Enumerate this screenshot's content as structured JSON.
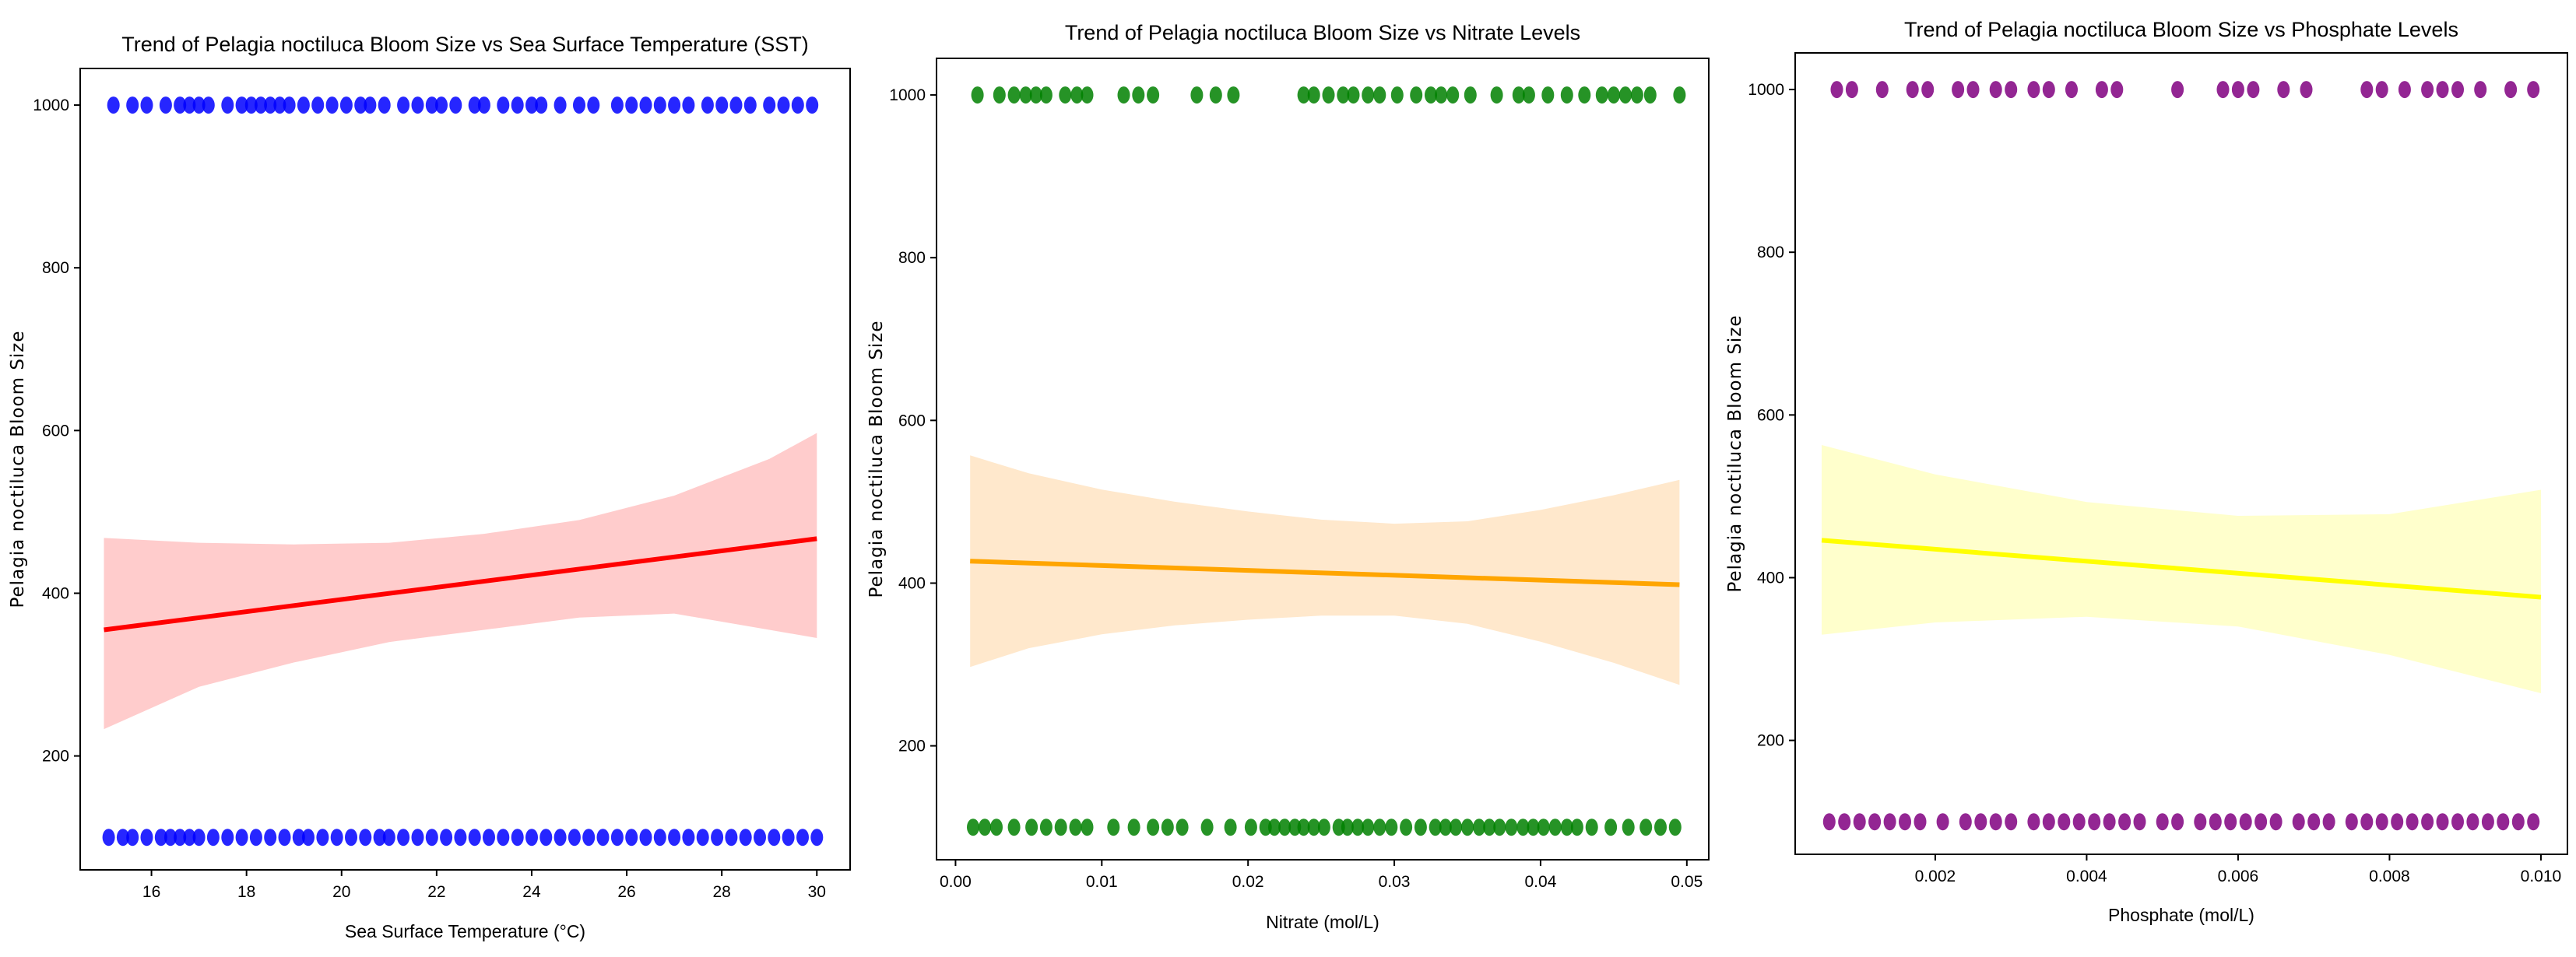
{
  "chart_data": [
    {
      "type": "scatter",
      "title": "Trend of Pelagia noctiluca Bloom Size vs Sea Surface Temperature (SST)",
      "xlabel": "Sea Surface Temperature (°C)",
      "ylabel": "Pelagia noctiluca Bloom Size",
      "xlim": [
        14.5,
        30.7
      ],
      "ylim": [
        60,
        1045
      ],
      "xticks": [
        16,
        18,
        20,
        22,
        24,
        26,
        28,
        30
      ],
      "yticks": [
        200,
        400,
        600,
        800,
        1000
      ],
      "point_color": "#0000ff",
      "line_color": "#ff0000",
      "band_color": "#ffcccc",
      "points_high_x": [
        15.2,
        15.6,
        15.9,
        16.3,
        16.6,
        16.8,
        17.0,
        17.2,
        17.6,
        17.9,
        18.1,
        18.3,
        18.5,
        18.7,
        18.9,
        19.2,
        19.5,
        19.8,
        20.1,
        20.4,
        20.6,
        20.9,
        21.3,
        21.6,
        21.9,
        22.1,
        22.4,
        22.8,
        23.0,
        23.4,
        23.7,
        24.0,
        24.2,
        24.6,
        25.0,
        25.3,
        25.8,
        26.1,
        26.4,
        26.7,
        27.0,
        27.3,
        27.7,
        28.0,
        28.3,
        28.6,
        29.0,
        29.3,
        29.6,
        29.9
      ],
      "points_low_x": [
        15.1,
        15.4,
        15.6,
        15.9,
        16.2,
        16.4,
        16.6,
        16.8,
        17.0,
        17.3,
        17.6,
        17.9,
        18.2,
        18.5,
        18.8,
        19.1,
        19.3,
        19.6,
        19.9,
        20.2,
        20.5,
        20.8,
        21.0,
        21.3,
        21.6,
        21.9,
        22.2,
        22.5,
        22.8,
        23.1,
        23.4,
        23.7,
        24.0,
        24.3,
        24.6,
        24.9,
        25.2,
        25.5,
        25.8,
        26.1,
        26.4,
        26.7,
        27.0,
        27.3,
        27.6,
        27.9,
        28.2,
        28.5,
        28.8,
        29.1,
        29.4,
        29.7,
        30.0
      ],
      "high_value": 1000,
      "low_value": 100,
      "fit_x": [
        15.0,
        30.0
      ],
      "fit_y": [
        355,
        467
      ],
      "ci_x": [
        15.0,
        17.0,
        19.0,
        21.0,
        23.0,
        25.0,
        27.0,
        29.0,
        30.0
      ],
      "ci_upper": [
        468,
        462,
        460,
        462,
        473,
        490,
        520,
        565,
        597
      ],
      "ci_lower": [
        233,
        285,
        315,
        340,
        355,
        370,
        375,
        355,
        345
      ]
    },
    {
      "type": "scatter",
      "title": "Trend of Pelagia noctiluca Bloom Size vs Nitrate Levels",
      "xlabel": "Nitrate (mol/L)",
      "ylabel": "Pelagia noctiluca Bloom Size",
      "xlim": [
        -0.0013,
        0.0515
      ],
      "ylim": [
        60,
        1045
      ],
      "xticks": [
        "0.00",
        "0.01",
        "0.02",
        "0.03",
        "0.04",
        "0.05"
      ],
      "xtick_values": [
        0.0,
        0.01,
        0.02,
        0.03,
        0.04,
        0.05
      ],
      "yticks": [
        200,
        400,
        600,
        800,
        1000
      ],
      "point_color": "#008000",
      "line_color": "#ffa500",
      "band_color": "#ffe8cc",
      "points_high_x": [
        0.0015,
        0.003,
        0.004,
        0.0048,
        0.0055,
        0.0062,
        0.0075,
        0.0083,
        0.009,
        0.0115,
        0.0125,
        0.0135,
        0.0165,
        0.0178,
        0.019,
        0.0238,
        0.0245,
        0.0255,
        0.0265,
        0.0272,
        0.0282,
        0.029,
        0.0302,
        0.0315,
        0.0325,
        0.0332,
        0.034,
        0.0352,
        0.037,
        0.0385,
        0.0392,
        0.0405,
        0.0418,
        0.043,
        0.0442,
        0.045,
        0.0458,
        0.0466,
        0.0475,
        0.0495
      ],
      "points_low_x": [
        0.0012,
        0.002,
        0.0028,
        0.004,
        0.0052,
        0.0062,
        0.0072,
        0.0082,
        0.009,
        0.0108,
        0.0122,
        0.0135,
        0.0145,
        0.0155,
        0.0172,
        0.0188,
        0.0202,
        0.0212,
        0.0218,
        0.0225,
        0.0232,
        0.0238,
        0.0245,
        0.0252,
        0.0262,
        0.0268,
        0.0275,
        0.0282,
        0.029,
        0.0298,
        0.0308,
        0.0318,
        0.0328,
        0.0335,
        0.0342,
        0.035,
        0.0358,
        0.0365,
        0.0372,
        0.038,
        0.0388,
        0.0395,
        0.0402,
        0.041,
        0.0418,
        0.0425,
        0.0435,
        0.0448,
        0.046,
        0.0472,
        0.0482,
        0.0492
      ],
      "high_value": 1000,
      "low_value": 100,
      "fit_x": [
        0.001,
        0.0495
      ],
      "fit_y": [
        427,
        398
      ],
      "ci_x": [
        0.001,
        0.005,
        0.01,
        0.015,
        0.02,
        0.025,
        0.03,
        0.035,
        0.04,
        0.045,
        0.0495
      ],
      "ci_upper": [
        557,
        535,
        515,
        500,
        488,
        478,
        473,
        476,
        490,
        508,
        527
      ],
      "ci_lower": [
        297,
        320,
        337,
        348,
        355,
        360,
        360,
        350,
        328,
        302,
        275
      ]
    },
    {
      "type": "scatter",
      "title": "Trend of Pelagia noctiluca Bloom Size vs Phosphate Levels",
      "xlabel": "Phosphate (mol/L)",
      "ylabel": "Pelagia noctiluca Bloom Size",
      "xlim": [
        0.00015,
        0.01035
      ],
      "ylim": [
        60,
        1045
      ],
      "xticks": [
        "0.002",
        "0.004",
        "0.006",
        "0.008",
        "0.010"
      ],
      "xtick_values": [
        0.002,
        0.004,
        0.006,
        0.008,
        0.01
      ],
      "yticks": [
        200,
        400,
        600,
        800,
        1000
      ],
      "point_color": "#800080",
      "line_color": "#ffff00",
      "band_color": "#ffffcc",
      "points_high_x": [
        0.0007,
        0.0009,
        0.0013,
        0.0017,
        0.0019,
        0.0023,
        0.0025,
        0.0028,
        0.003,
        0.0033,
        0.0035,
        0.0038,
        0.0042,
        0.0044,
        0.0052,
        0.0058,
        0.006,
        0.0062,
        0.0066,
        0.0069,
        0.0077,
        0.0079,
        0.0082,
        0.0085,
        0.0087,
        0.0089,
        0.0092,
        0.0096,
        0.0099
      ],
      "points_low_x": [
        0.0006,
        0.0008,
        0.001,
        0.0012,
        0.0014,
        0.0016,
        0.0018,
        0.0021,
        0.0024,
        0.0026,
        0.0028,
        0.003,
        0.0033,
        0.0035,
        0.0037,
        0.0039,
        0.0041,
        0.0043,
        0.0045,
        0.0047,
        0.005,
        0.0052,
        0.0055,
        0.0057,
        0.0059,
        0.0061,
        0.0063,
        0.0065,
        0.0068,
        0.007,
        0.0072,
        0.0075,
        0.0077,
        0.0079,
        0.0081,
        0.0083,
        0.0085,
        0.0087,
        0.0089,
        0.0091,
        0.0093,
        0.0095,
        0.0097,
        0.0099
      ],
      "high_value": 1000,
      "low_value": 100,
      "fit_x": [
        0.0005,
        0.01
      ],
      "fit_y": [
        446,
        376
      ],
      "ci_x": [
        0.0005,
        0.002,
        0.004,
        0.006,
        0.008,
        0.01
      ],
      "ci_upper": [
        563,
        527,
        493,
        476,
        478,
        508
      ],
      "ci_lower": [
        330,
        345,
        352,
        340,
        305,
        258
      ]
    }
  ]
}
